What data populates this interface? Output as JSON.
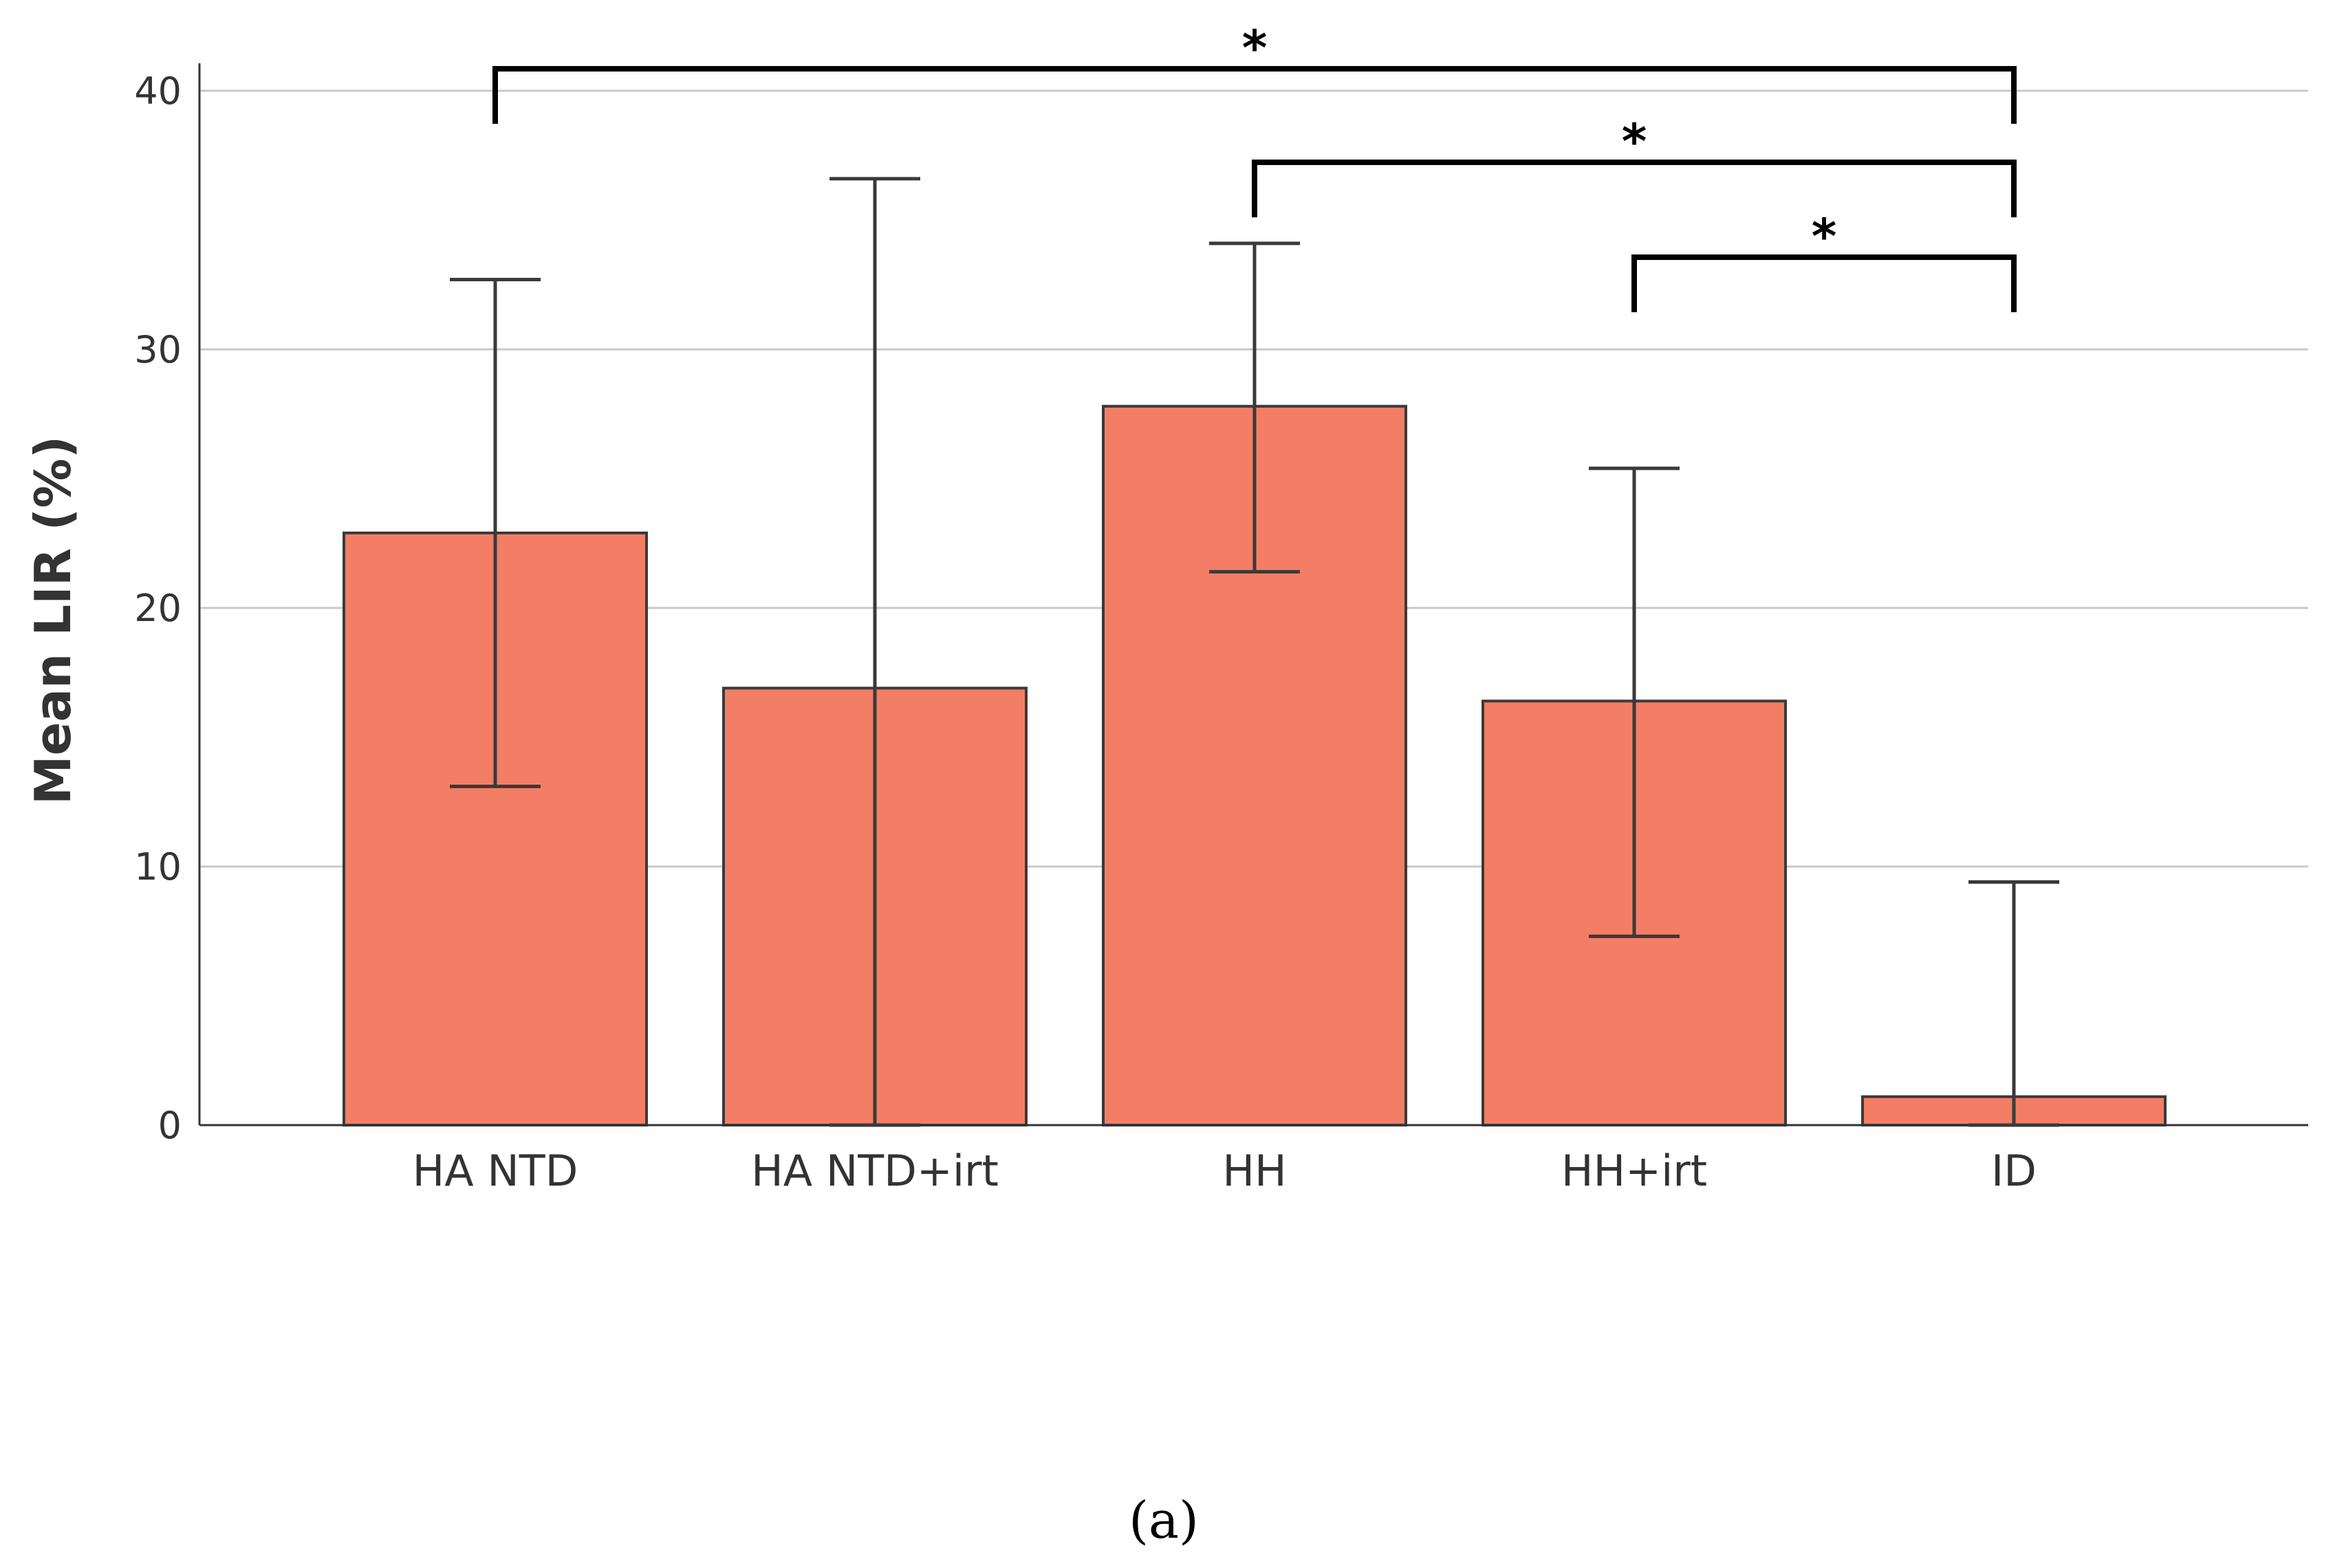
{
  "chart_data": {
    "type": "bar",
    "title": "",
    "xlabel": "",
    "ylabel": "Mean LIR (%)",
    "ylim": [
      0,
      40
    ],
    "yticks": [
      0,
      10,
      20,
      30,
      40
    ],
    "grid": true,
    "categories": [
      "HA NTD",
      "HA NTD+irt",
      "HH",
      "HH+irt",
      "ID"
    ],
    "values": [
      22.9,
      16.9,
      27.8,
      16.4,
      1.1
    ],
    "error_low": [
      13.1,
      0,
      21.4,
      7.3,
      0
    ],
    "error_high": [
      32.7,
      36.6,
      34.1,
      25.4,
      9.4
    ],
    "significance": [
      {
        "from": "HA NTD",
        "to": "ID",
        "label": "*"
      },
      {
        "from": "HH",
        "to": "ID",
        "label": "*"
      },
      {
        "from": "HH+irt",
        "to": "ID",
        "label": "*"
      }
    ],
    "bar_color": "#f37e65",
    "edge_color": "#3a3a3a",
    "grid_color": "#c8c8c8",
    "caption": "(a)"
  }
}
